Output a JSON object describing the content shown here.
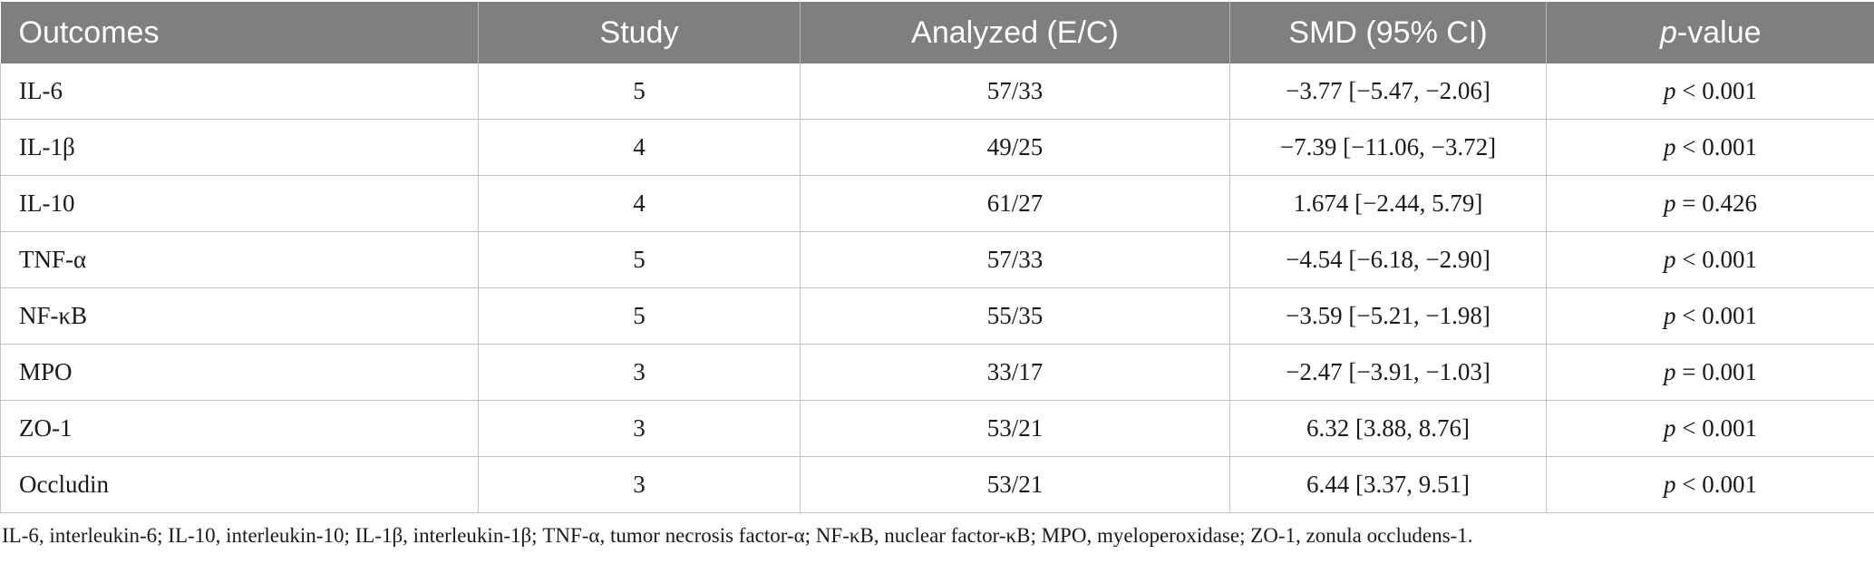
{
  "table": {
    "headers": [
      {
        "text": "Outcomes"
      },
      {
        "text": "Study"
      },
      {
        "text": "Analyzed (E/C)"
      },
      {
        "text": "SMD (95% CI)"
      },
      {
        "text_italic": "p",
        "text_rest": "-value"
      }
    ],
    "rows": [
      {
        "outcome": "IL-6",
        "study": "5",
        "analyzed": "57/33",
        "smd": "−3.77 [−5.47, −2.06]",
        "p_sym": "p",
        "p_rest": " < 0.001"
      },
      {
        "outcome": "IL-1β",
        "study": "4",
        "analyzed": "49/25",
        "smd": "−7.39 [−11.06, −3.72]",
        "p_sym": "p",
        "p_rest": " < 0.001"
      },
      {
        "outcome": "IL-10",
        "study": "4",
        "analyzed": "61/27",
        "smd": "1.674 [−2.44, 5.79]",
        "p_sym": "p",
        "p_rest": " = 0.426"
      },
      {
        "outcome": "TNF-α",
        "study": "5",
        "analyzed": "57/33",
        "smd": "−4.54 [−6.18, −2.90]",
        "p_sym": "p",
        "p_rest": " < 0.001"
      },
      {
        "outcome": "NF-κB",
        "study": "5",
        "analyzed": "55/35",
        "smd": "−3.59 [−5.21, −1.98]",
        "p_sym": "p",
        "p_rest": " < 0.001"
      },
      {
        "outcome": "MPO",
        "study": "3",
        "analyzed": "33/17",
        "smd": "−2.47 [−3.91, −1.03]",
        "p_sym": "p",
        "p_rest": " = 0.001"
      },
      {
        "outcome": "ZO-1",
        "study": "3",
        "analyzed": "53/21",
        "smd": "6.32 [3.88, 8.76]",
        "p_sym": "p",
        "p_rest": " < 0.001"
      },
      {
        "outcome": "Occludin",
        "study": "3",
        "analyzed": "53/21",
        "smd": "6.44 [3.37, 9.51]",
        "p_sym": "p",
        "p_rest": " < 0.001"
      }
    ]
  },
  "footnote": "IL-6, interleukin-6; IL-10, interleukin-10; IL-1β, interleukin-1β; TNF-α, tumor necrosis factor-α; NF-κB, nuclear factor-κB; MPO, myeloperoxidase; ZO-1, zonula occludens-1."
}
